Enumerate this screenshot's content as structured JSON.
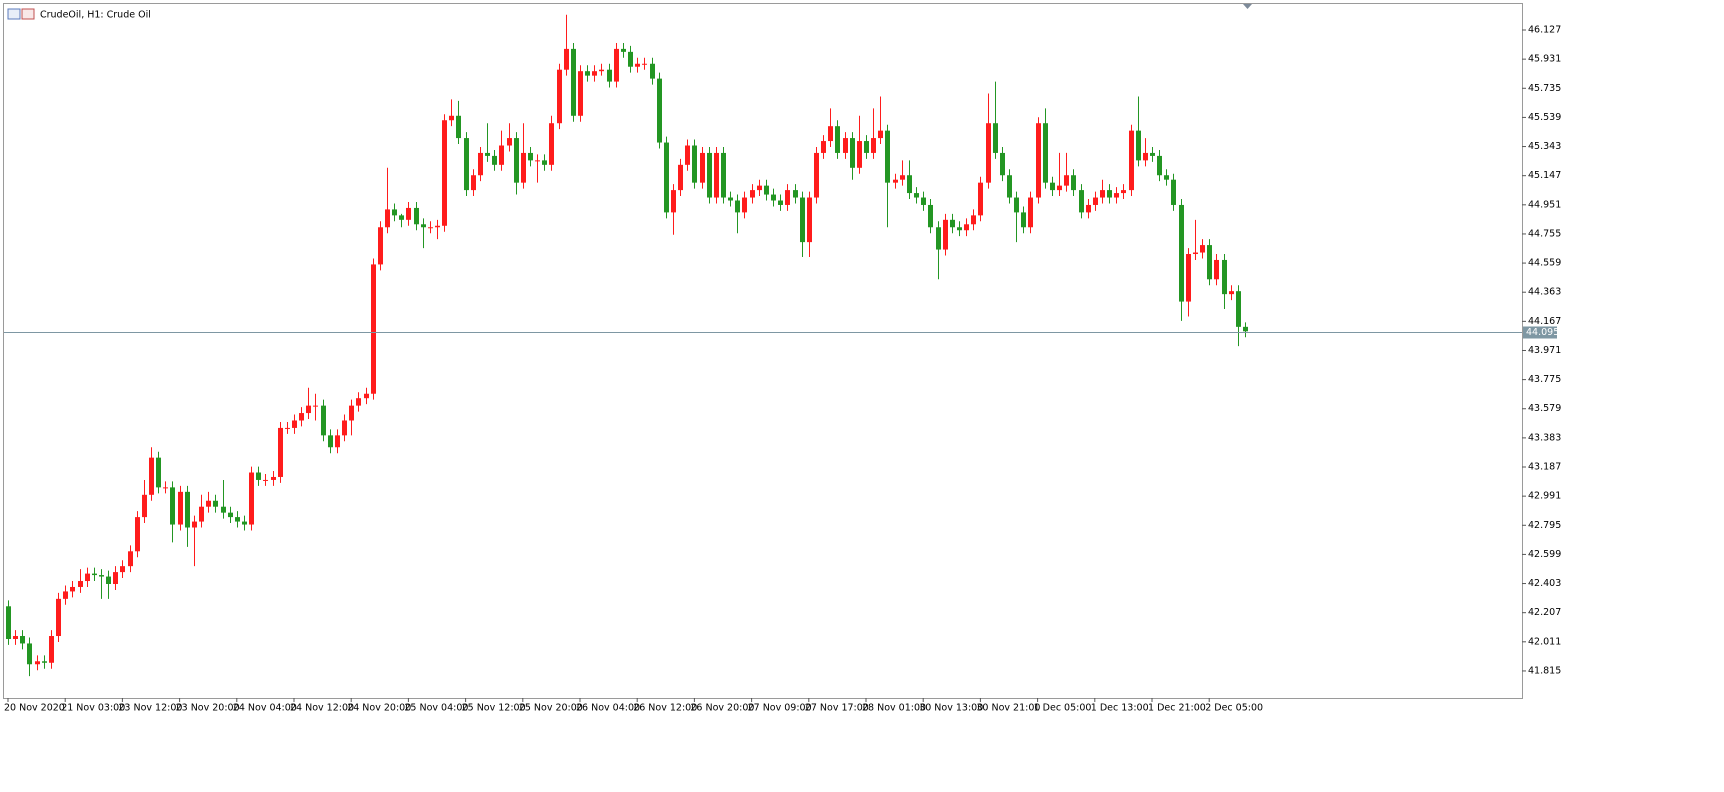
{
  "chart_data": {
    "type": "candlestick",
    "title": "CrudeOil, H1:  Crude Oil",
    "categories": [
      "20 Nov 2020",
      null,
      null,
      null,
      null,
      null,
      null,
      null,
      "21 Nov 03:00",
      null,
      null,
      null,
      null,
      null,
      null,
      null,
      "23 Nov 12:00",
      null,
      null,
      null,
      null,
      null,
      null,
      null,
      "23 Nov 20:00",
      null,
      null,
      null,
      null,
      null,
      null,
      null,
      "24 Nov 04:00",
      null,
      null,
      null,
      null,
      null,
      null,
      null,
      "24 Nov 12:00",
      null,
      null,
      null,
      null,
      null,
      null,
      null,
      "24 Nov 20:00",
      null,
      null,
      null,
      null,
      null,
      null,
      null,
      "25 Nov 04:00",
      null,
      null,
      null,
      null,
      null,
      null,
      null,
      "25 Nov 12:00",
      null,
      null,
      null,
      null,
      null,
      null,
      null,
      "25 Nov 20:00",
      null,
      null,
      null,
      null,
      null,
      null,
      null,
      "26 Nov 04:00",
      null,
      null,
      null,
      null,
      null,
      null,
      null,
      "26 Nov 12:00",
      null,
      null,
      null,
      null,
      null,
      null,
      null,
      "26 Nov 20:00",
      null,
      null,
      null,
      null,
      null,
      null,
      null,
      "27 Nov 09:00",
      null,
      null,
      null,
      null,
      null,
      null,
      null,
      "27 Nov 17:00",
      null,
      null,
      null,
      null,
      null,
      null,
      null,
      "28 Nov 01:00",
      null,
      null,
      null,
      null,
      null,
      null,
      null,
      "30 Nov 13:00",
      null,
      null,
      null,
      null,
      null,
      null,
      null,
      "30 Nov 21:00",
      null,
      null,
      null,
      null,
      null,
      null,
      null,
      "1 Dec 05:00",
      null,
      null,
      null,
      null,
      null,
      null,
      null,
      "1 Dec 13:00",
      null,
      null,
      null,
      null,
      null,
      null,
      null,
      "1 Dec 21:00",
      null,
      null,
      null,
      null,
      null,
      null,
      null,
      "2 Dec 05:00",
      null,
      null,
      null,
      null,
      null
    ],
    "open": [
      42.25,
      42.03,
      42.05,
      42.0,
      41.86,
      41.88,
      41.87,
      42.05,
      42.3,
      42.35,
      42.38,
      42.42,
      42.47,
      42.46,
      42.45,
      42.4,
      42.48,
      42.52,
      42.62,
      42.85,
      43.0,
      43.25,
      43.05,
      43.05,
      42.8,
      43.02,
      42.78,
      42.82,
      42.92,
      42.96,
      42.92,
      42.88,
      42.85,
      42.82,
      42.8,
      43.15,
      43.1,
      43.1,
      43.12,
      43.45,
      43.45,
      43.5,
      43.55,
      43.6,
      43.6,
      43.4,
      43.32,
      43.4,
      43.5,
      43.6,
      43.65,
      43.68,
      44.55,
      44.8,
      44.92,
      44.88,
      44.85,
      44.93,
      44.82,
      44.8,
      44.8,
      44.81,
      45.52,
      45.55,
      45.4,
      45.05,
      45.15,
      45.3,
      45.28,
      45.22,
      45.35,
      45.4,
      45.1,
      45.3,
      45.25,
      45.25,
      45.22,
      45.5,
      45.86,
      46.0,
      45.55,
      45.85,
      45.82,
      45.85,
      45.86,
      45.78,
      46.0,
      45.98,
      45.88,
      45.9,
      45.9,
      45.8,
      45.37,
      44.9,
      45.05,
      45.22,
      45.35,
      45.1,
      45.3,
      45.0,
      45.3,
      45.0,
      44.98,
      44.9,
      45.0,
      45.05,
      45.08,
      45.02,
      44.98,
      44.95,
      45.05,
      45.0,
      44.7,
      45.0,
      45.3,
      45.38,
      45.48,
      45.3,
      45.4,
      45.2,
      45.38,
      45.3,
      45.4,
      45.45,
      45.1,
      45.12,
      45.15,
      45.03,
      45.0,
      44.95,
      44.8,
      44.65,
      44.85,
      44.8,
      44.78,
      44.82,
      44.88,
      45.1,
      45.5,
      45.3,
      45.15,
      45.0,
      44.9,
      44.8,
      45.0,
      45.5,
      45.1,
      45.05,
      45.08,
      45.15,
      45.05,
      44.9,
      44.95,
      45.0,
      45.05,
      45.0,
      45.03,
      45.05,
      45.45,
      45.25,
      45.3,
      45.28,
      45.15,
      45.12,
      44.95,
      44.3,
      44.62,
      44.63,
      44.68,
      44.45,
      44.58,
      44.35,
      44.37,
      44.13
    ],
    "high": [
      42.29,
      42.09,
      42.09,
      42.04,
      41.92,
      41.92,
      42.09,
      42.34,
      42.39,
      42.42,
      42.5,
      42.51,
      42.51,
      42.5,
      42.49,
      42.52,
      42.56,
      42.66,
      42.89,
      43.1,
      43.32,
      43.29,
      43.09,
      43.09,
      43.06,
      43.06,
      42.86,
      43.0,
      43.02,
      43.0,
      43.1,
      42.92,
      42.89,
      42.86,
      43.19,
      43.19,
      43.14,
      43.16,
      43.49,
      43.49,
      43.54,
      43.59,
      43.72,
      43.68,
      43.64,
      43.44,
      43.44,
      43.54,
      43.64,
      43.69,
      43.72,
      44.59,
      44.84,
      45.2,
      44.96,
      44.89,
      44.97,
      44.97,
      44.86,
      44.84,
      44.85,
      45.56,
      45.66,
      45.65,
      45.44,
      45.19,
      45.34,
      45.5,
      45.32,
      45.45,
      45.5,
      45.44,
      45.5,
      45.34,
      45.29,
      45.29,
      45.55,
      45.9,
      46.23,
      46.04,
      45.89,
      45.89,
      45.89,
      45.9,
      45.9,
      46.04,
      46.04,
      46.02,
      45.94,
      45.94,
      45.94,
      45.84,
      45.41,
      45.09,
      45.26,
      45.39,
      45.39,
      45.34,
      45.34,
      45.34,
      45.34,
      45.04,
      45.02,
      45.04,
      45.09,
      45.12,
      45.12,
      45.06,
      45.02,
      45.09,
      45.09,
      45.04,
      45.04,
      45.34,
      45.42,
      45.6,
      45.52,
      45.44,
      45.44,
      45.55,
      45.42,
      45.6,
      45.68,
      45.49,
      45.16,
      45.25,
      45.25,
      45.07,
      45.04,
      44.99,
      44.84,
      44.89,
      44.89,
      44.84,
      44.86,
      44.92,
      45.14,
      45.7,
      45.78,
      45.34,
      45.19,
      45.04,
      44.94,
      45.04,
      45.54,
      45.6,
      45.14,
      45.3,
      45.3,
      45.19,
      45.09,
      44.99,
      45.04,
      45.12,
      45.09,
      45.07,
      45.09,
      45.49,
      45.68,
      45.4,
      45.34,
      45.32,
      45.19,
      45.16,
      44.99,
      44.66,
      44.85,
      44.72,
      44.72,
      44.62,
      44.62,
      44.41,
      44.41,
      44.16
    ],
    "low": [
      41.99,
      41.99,
      41.96,
      41.78,
      41.82,
      41.83,
      41.83,
      42.01,
      42.26,
      42.31,
      42.34,
      42.38,
      42.42,
      42.3,
      42.3,
      42.36,
      42.44,
      42.48,
      42.58,
      42.81,
      42.96,
      43.01,
      43.01,
      42.68,
      42.76,
      42.65,
      42.52,
      42.78,
      42.88,
      42.88,
      42.84,
      42.81,
      42.78,
      42.76,
      42.76,
      43.06,
      43.06,
      43.06,
      43.08,
      43.41,
      43.41,
      43.46,
      43.51,
      43.5,
      43.36,
      43.28,
      43.28,
      43.36,
      43.4,
      43.56,
      43.61,
      43.64,
      44.51,
      44.76,
      44.84,
      44.8,
      44.81,
      44.78,
      44.66,
      44.76,
      44.72,
      44.77,
      45.48,
      45.36,
      45.01,
      45.01,
      45.11,
      45.24,
      45.18,
      45.18,
      45.31,
      45.02,
      45.06,
      45.21,
      45.1,
      45.18,
      45.18,
      45.46,
      45.82,
      45.51,
      45.51,
      45.78,
      45.78,
      45.82,
      45.74,
      45.74,
      45.94,
      45.84,
      45.84,
      45.86,
      45.76,
      45.33,
      44.86,
      44.75,
      45.01,
      45.18,
      45.06,
      45.06,
      44.96,
      44.96,
      44.96,
      44.94,
      44.76,
      44.86,
      44.96,
      45.01,
      44.98,
      44.94,
      44.91,
      44.91,
      44.96,
      44.6,
      44.6,
      44.96,
      45.26,
      45.34,
      45.26,
      45.26,
      45.12,
      45.16,
      45.26,
      45.26,
      45.36,
      44.8,
      45.06,
      45.08,
      44.99,
      44.96,
      44.91,
      44.76,
      44.45,
      44.61,
      44.76,
      44.74,
      44.74,
      44.78,
      44.84,
      45.06,
      45.26,
      45.11,
      44.96,
      44.7,
      44.76,
      44.76,
      44.96,
      45.06,
      45.01,
      45.01,
      45.04,
      45.01,
      44.86,
      44.86,
      44.91,
      44.96,
      44.96,
      44.96,
      44.99,
      45.01,
      45.21,
      45.21,
      45.24,
      45.11,
      45.08,
      44.91,
      44.17,
      44.2,
      44.58,
      44.59,
      44.41,
      44.41,
      44.25,
      44.31,
      44.0,
      44.06
    ],
    "close": [
      42.03,
      42.05,
      42.0,
      41.86,
      41.88,
      41.87,
      42.05,
      42.3,
      42.35,
      42.38,
      42.42,
      42.47,
      42.46,
      42.45,
      42.4,
      42.48,
      42.52,
      42.62,
      42.85,
      43.0,
      43.25,
      43.05,
      43.05,
      42.8,
      43.02,
      42.78,
      42.82,
      42.92,
      42.96,
      42.92,
      42.88,
      42.85,
      42.82,
      42.8,
      43.15,
      43.1,
      43.1,
      43.12,
      43.45,
      43.45,
      43.5,
      43.55,
      43.6,
      43.6,
      43.4,
      43.32,
      43.4,
      43.5,
      43.6,
      43.65,
      43.68,
      44.55,
      44.8,
      44.92,
      44.88,
      44.85,
      44.93,
      44.82,
      44.8,
      44.8,
      44.81,
      45.52,
      45.55,
      45.4,
      45.05,
      45.15,
      45.3,
      45.28,
      45.22,
      45.35,
      45.4,
      45.1,
      45.3,
      45.25,
      45.25,
      45.22,
      45.5,
      45.86,
      46.0,
      45.55,
      45.85,
      45.82,
      45.85,
      45.86,
      45.78,
      46.0,
      45.98,
      45.88,
      45.9,
      45.9,
      45.8,
      45.37,
      44.9,
      45.05,
      45.22,
      45.35,
      45.1,
      45.3,
      45.0,
      45.3,
      45.0,
      44.98,
      44.9,
      45.0,
      45.05,
      45.08,
      45.02,
      44.98,
      44.95,
      45.05,
      45.0,
      44.7,
      45.0,
      45.3,
      45.38,
      45.48,
      45.3,
      45.4,
      45.2,
      45.38,
      45.3,
      45.4,
      45.45,
      45.1,
      45.12,
      45.15,
      45.03,
      45.0,
      44.95,
      44.8,
      44.65,
      44.85,
      44.8,
      44.78,
      44.82,
      44.88,
      45.1,
      45.5,
      45.3,
      45.15,
      45.0,
      44.9,
      44.8,
      45.0,
      45.5,
      45.1,
      45.05,
      45.08,
      45.15,
      45.05,
      44.9,
      44.95,
      45.0,
      45.05,
      45.0,
      45.03,
      45.05,
      45.45,
      45.25,
      45.3,
      45.28,
      45.15,
      45.12,
      44.95,
      44.3,
      44.62,
      44.63,
      44.68,
      44.45,
      44.58,
      44.35,
      44.37,
      44.13,
      44.1
    ],
    "up_color": "#ff1c1c",
    "down_color": "#239623",
    "last_price": 44.095,
    "last_price_color": "#7e97a3",
    "ylim": [
      41.633,
      46.302
    ],
    "yticks": [
      41.815,
      42.011,
      42.207,
      42.403,
      42.599,
      42.795,
      42.991,
      43.187,
      43.383,
      43.579,
      43.775,
      43.971,
      44.167,
      44.363,
      44.559,
      44.755,
      44.951,
      45.147,
      45.343,
      45.539,
      45.735,
      45.931,
      46.127
    ]
  }
}
